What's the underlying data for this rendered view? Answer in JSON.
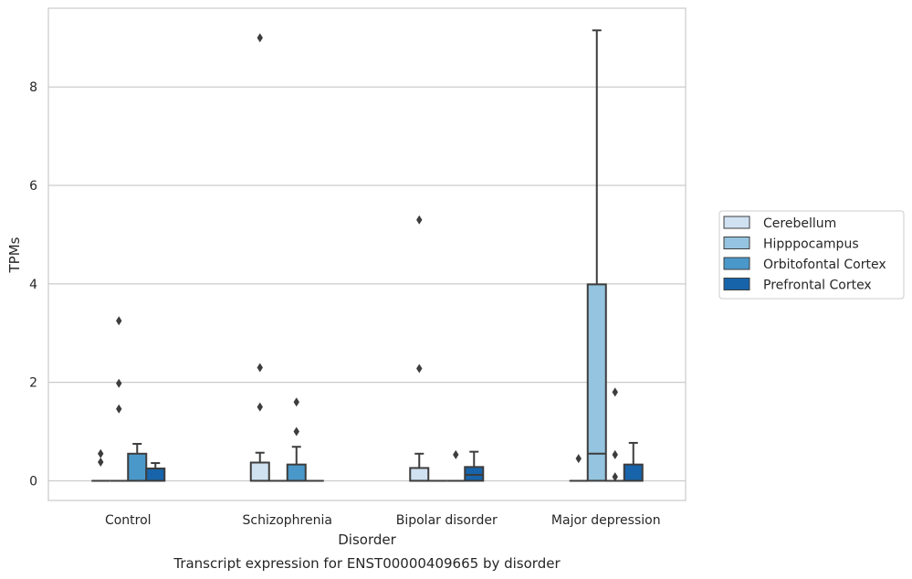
{
  "chart_data": {
    "type": "box",
    "caption": "Transcript expression for ENST00000409665 by disorder",
    "xlabel": "Disorder",
    "ylabel": "TPMs",
    "ylim": [
      -0.4,
      9.6
    ],
    "yticks": [
      0,
      2,
      4,
      6,
      8
    ],
    "grid": "horizontal",
    "legend_position": "right",
    "categories": [
      "Control",
      "Schizophrenia",
      "Bipolar disorder",
      "Major depression"
    ],
    "series": [
      {
        "name": "Cerebellum",
        "color": "#d0e1f2",
        "boxes": [
          {
            "q1": 0,
            "median": 0,
            "q3": 0,
            "whisker_low": 0,
            "whisker_high": 0,
            "outliers": [
              0.38,
              0.55
            ]
          },
          {
            "q1": 0,
            "median": 0,
            "q3": 0.37,
            "whisker_low": 0,
            "whisker_high": 0.57,
            "outliers": [
              2.3,
              1.5,
              9.0
            ]
          },
          {
            "q1": 0,
            "median": 0,
            "q3": 0.26,
            "whisker_low": 0,
            "whisker_high": 0.55,
            "outliers": [
              5.3,
              2.28
            ]
          },
          {
            "q1": 0,
            "median": 0,
            "q3": 0,
            "whisker_low": 0,
            "whisker_high": 0,
            "outliers": [
              0.45
            ]
          }
        ]
      },
      {
        "name": "Hipppocampus",
        "color": "#94c4df",
        "boxes": [
          {
            "q1": 0,
            "median": 0,
            "q3": 0,
            "whisker_low": 0,
            "whisker_high": 0,
            "outliers": [
              3.25,
              1.98,
              1.46
            ]
          },
          {
            "q1": 0,
            "median": 0,
            "q3": 0,
            "whisker_low": 0,
            "whisker_high": 0,
            "outliers": []
          },
          {
            "q1": 0,
            "median": 0,
            "q3": 0,
            "whisker_low": 0,
            "whisker_high": 0,
            "outliers": []
          },
          {
            "q1": 0,
            "median": 0.55,
            "q3": 3.99,
            "whisker_low": 0,
            "whisker_high": 9.15,
            "outliers": []
          }
        ]
      },
      {
        "name": "Orbitofontal Cortex",
        "color": "#4a98c9",
        "boxes": [
          {
            "q1": 0,
            "median": 0,
            "q3": 0.55,
            "whisker_low": 0,
            "whisker_high": 0.75,
            "outliers": []
          },
          {
            "q1": 0,
            "median": 0,
            "q3": 0.33,
            "whisker_low": 0,
            "whisker_high": 0.69,
            "outliers": [
              1.6,
              1.0
            ]
          },
          {
            "q1": 0,
            "median": 0,
            "q3": 0,
            "whisker_low": 0,
            "whisker_high": 0,
            "outliers": [
              0.53
            ]
          },
          {
            "q1": 0,
            "median": 0,
            "q3": 0,
            "whisker_low": 0,
            "whisker_high": 0,
            "outliers": [
              1.8,
              0.53,
              0.08
            ]
          }
        ]
      },
      {
        "name": "Prefrontal Cortex",
        "color": "#1764ab",
        "boxes": [
          {
            "q1": 0,
            "median": 0,
            "q3": 0.25,
            "whisker_low": 0,
            "whisker_high": 0.36,
            "outliers": []
          },
          {
            "q1": 0,
            "median": 0,
            "q3": 0,
            "whisker_low": 0,
            "whisker_high": 0,
            "outliers": []
          },
          {
            "q1": 0,
            "median": 0.12,
            "q3": 0.28,
            "whisker_low": 0,
            "whisker_high": 0.59,
            "outliers": []
          },
          {
            "q1": 0,
            "median": 0,
            "q3": 0.33,
            "whisker_low": 0,
            "whisker_high": 0.77,
            "outliers": []
          }
        ]
      }
    ]
  }
}
